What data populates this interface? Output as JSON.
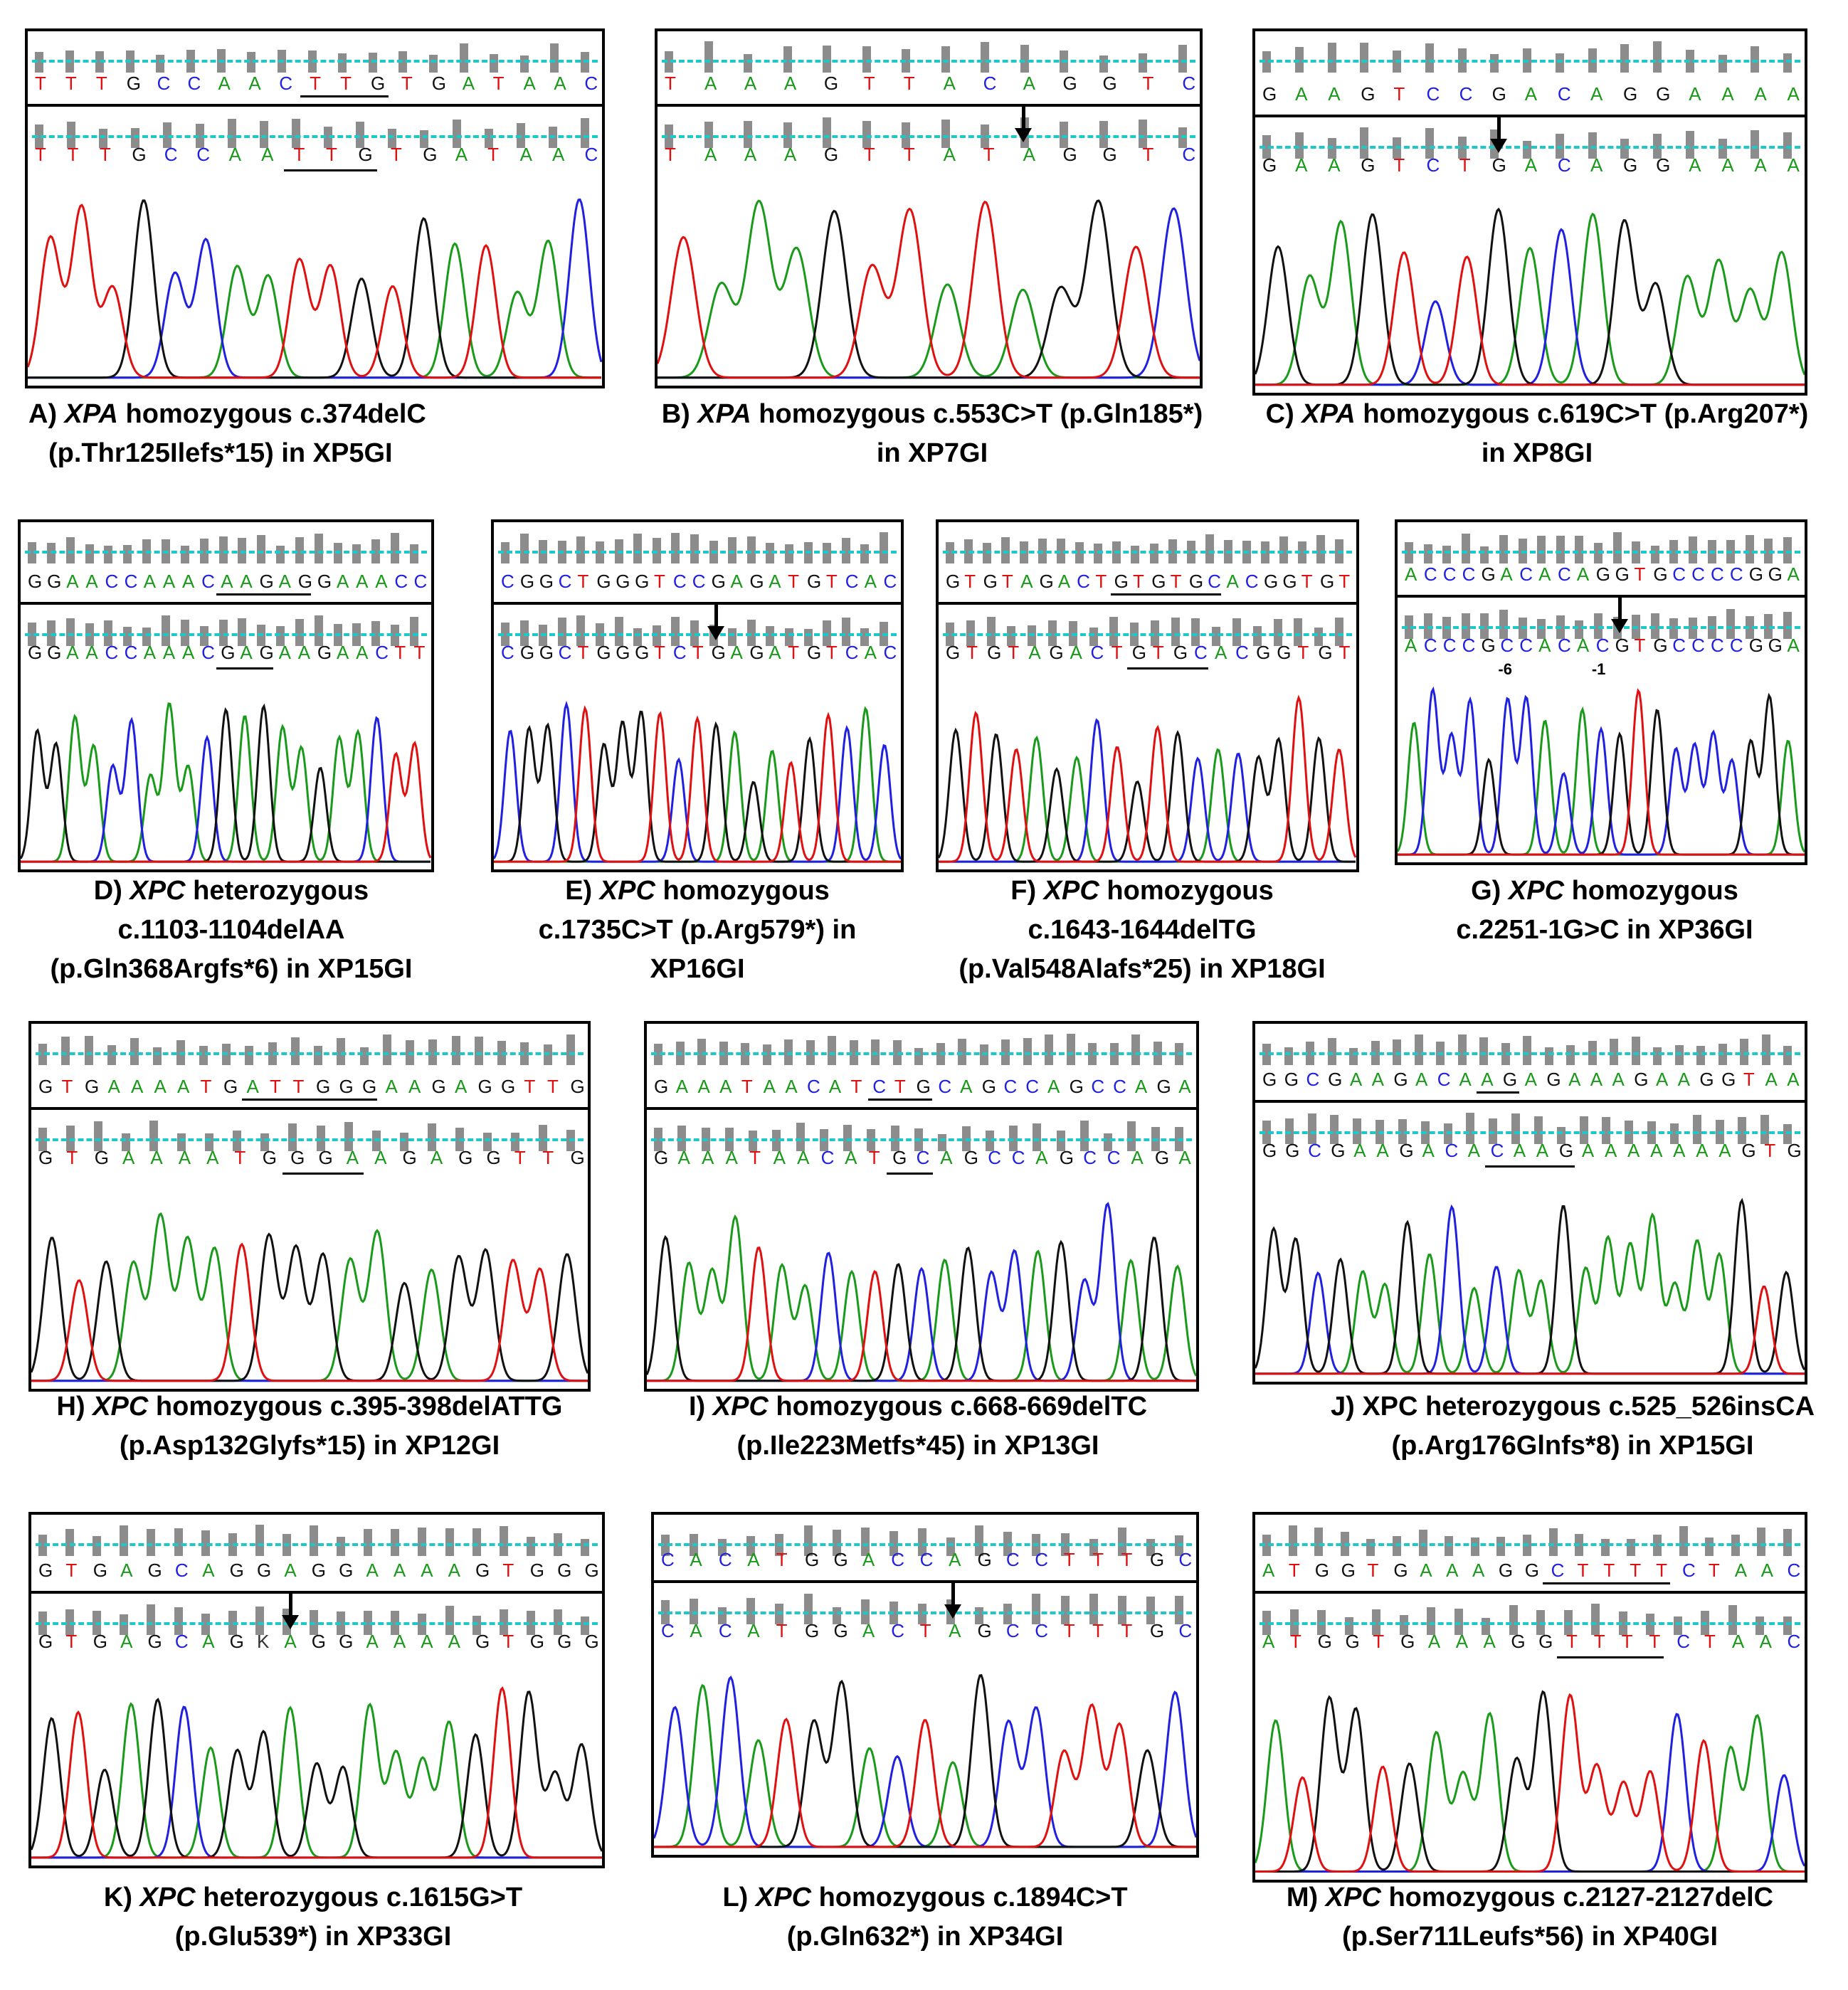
{
  "colors": {
    "A": "#1a9a1a",
    "C": "#2020e0",
    "G": "#111111",
    "T": "#e01010"
  },
  "panels": [
    {
      "id": "A",
      "ref_seq": "TTTGCCAACTTGTGATAAC",
      "pat_seq": "TTTGCCAATTGTGATAAC",
      "caption_prefix": "A) ",
      "gene": "XPA",
      "caption_rest": " homozygous c.374delC",
      "caption_line2": "(p.Thr125Ilefs*15) in XP5GI",
      "caption_line3": ""
    },
    {
      "id": "B",
      "ref_seq": "TAAAGTTACAGGTC",
      "pat_seq": "TAAAGTTATAGGTC",
      "caption_prefix": "B) ",
      "gene": "XPA",
      "caption_rest": " homozygous c.553C>T (p.Gln185*)",
      "caption_line2": "in XP7GI",
      "caption_line3": ""
    },
    {
      "id": "C",
      "ref_seq": "GAAGTCCGACAGGAAAA",
      "pat_seq": "GAAGTCTGACAGGAAAA",
      "caption_prefix": "C) ",
      "gene": "XPA",
      "caption_rest": " homozygous c.619C>T (p.Arg207*)",
      "caption_line2": "in XP8GI",
      "caption_line3": ""
    },
    {
      "id": "D",
      "ref_seq": "GGAACCAAACAAGAGGAAACC",
      "pat_seq": "GGAACCAAACGAGAAGAACTT",
      "caption_prefix": "D) ",
      "gene": "XPC",
      "caption_rest": " heterozygous",
      "caption_line2": "c.1103-1104delAA",
      "caption_line3": "(p.Gln368Argfs*6) in XP15GI"
    },
    {
      "id": "E",
      "ref_seq": "CGGCTGGGTCCGAGATGTCAC",
      "pat_seq": "CGGCTGGGTCTGAGATGTCAC",
      "caption_prefix": "E) ",
      "gene": "XPC",
      "caption_rest": " homozygous",
      "caption_line2": "c.1735C>T (p.Arg579*) in",
      "caption_line3": "XP16GI"
    },
    {
      "id": "F",
      "ref_seq": "GTGTAGACTGTGTGCACGGTGT",
      "pat_seq": "GTGTAGACTGTGCACGGTGT",
      "caption_prefix": "F) ",
      "gene": "XPC",
      "caption_rest": " homozygous",
      "caption_line2": "c.1643-1644delTG",
      "caption_line3": "(p.Val548Alafs*25) in XP18GI"
    },
    {
      "id": "G",
      "ref_seq": "ACCCGACACAGGTGCCCCGGA",
      "pat_seq": "ACCCGCCACACGTGCCCCGGA",
      "pos_label_1": "-6",
      "pos_label_2": "-1",
      "caption_prefix": "G) ",
      "gene": "XPC",
      "caption_rest": " homozygous",
      "caption_line2": "c.2251-1G>C in XP36GI",
      "caption_line3": ""
    },
    {
      "id": "H",
      "ref_seq": "GTGAAAATGATTGGGAAGAGGTTG",
      "pat_seq": "GTGAAAATGGGAAGAGGTTG",
      "caption_prefix": "H) ",
      "gene": "XPC",
      "caption_rest": " homozygous c.395-398delATTG",
      "caption_line2": "(p.Asp132Glyfs*15) in XP12GI",
      "caption_line3": ""
    },
    {
      "id": "I",
      "ref_seq": "GAAATAACATCTGCAGCCAGCCAGA",
      "pat_seq": "GAAATAACATGCAGCCAGCCAGA",
      "caption_prefix": "I) ",
      "gene": "XPC",
      "caption_rest": " homozygous c.668-669delTC",
      "caption_line2": "(p.Ile223Metfs*45) in XP13GI",
      "caption_line3": ""
    },
    {
      "id": "J",
      "ref_seq": "GGCGAAGACAAGAGAAAGAAGGTAA",
      "pat_seq": "GGCGAAGACACAAGAAAAAAAGTG",
      "caption_prefix": "J) ",
      "gene": "",
      "caption_rest": "XPC heterozygous c.525_526insCA",
      "caption_line2": "(p.Arg176Glnfs*8) in XP15GI",
      "caption_line3": ""
    },
    {
      "id": "K",
      "ref_seq": "GTGAGCAGGAGGAAAAGTGGG",
      "pat_seq": "GTGAGCAGKAGGAAAAGTGGG",
      "caption_prefix": "K) ",
      "gene": "XPC",
      "caption_rest": " heterozygous  c.1615G>T",
      "caption_line2": "(p.Glu539*) in XP33GI",
      "caption_line3": ""
    },
    {
      "id": "L",
      "ref_seq": "CACATGGACCAGCCTTTGC",
      "pat_seq": "CACATGGACTAGCCTTTGC",
      "caption_prefix": "L) ",
      "gene": "XPC",
      "caption_rest": " homozygous c.1894C>T",
      "caption_line2": "(p.Gln632*) in XP34GI",
      "caption_line3": ""
    },
    {
      "id": "M",
      "ref_seq": "ATGGTGAAAGGCTTTTCTAAC",
      "pat_seq": "ATGGTGAAAGGTTTTCTAAC",
      "caption_prefix": "M) ",
      "gene": "XPC",
      "caption_rest": " homozygous c.2127-2127delC",
      "caption_line2": "(p.Ser711Leufs*56) in XP40GI",
      "caption_line3": ""
    }
  ]
}
